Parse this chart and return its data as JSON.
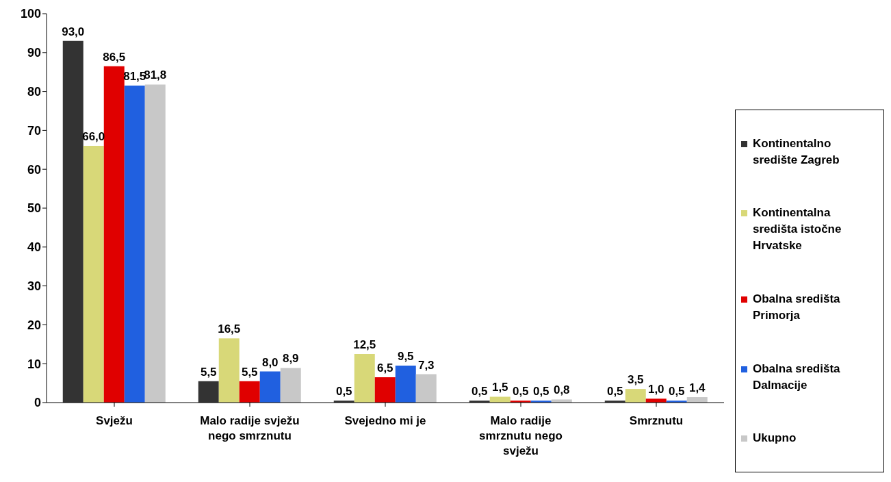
{
  "chart_data": {
    "type": "bar",
    "categories": [
      "Svježu",
      "Malo radije svježu nego smrznutu",
      "Svejedno mi je",
      "Malo radije smrznutu nego svježu",
      "Smrznutu"
    ],
    "series": [
      {
        "name": "Kontinentalno središte Zagreb",
        "color": "#333333",
        "values": [
          93.0,
          5.5,
          0.5,
          0.5,
          0.5
        ],
        "value_labels": [
          "93,0",
          "5,5",
          "0,5",
          "0,5",
          "0,5"
        ]
      },
      {
        "name": "Kontinentalna središta istočne Hrvatske",
        "color": "#d8d878",
        "values": [
          66.0,
          16.5,
          12.5,
          1.5,
          3.5
        ],
        "value_labels": [
          "66,0",
          "16,5",
          "12,5",
          "1,5",
          "3,5"
        ]
      },
      {
        "name": "Obalna središta Primorja",
        "color": "#e00000",
        "values": [
          86.5,
          5.5,
          6.5,
          0.5,
          1.0
        ],
        "value_labels": [
          "86,5",
          "5,5",
          "6,5",
          "0,5",
          "1,0"
        ]
      },
      {
        "name": "Obalna središta Dalmacije",
        "color": "#2060e0",
        "values": [
          81.5,
          8.0,
          9.5,
          0.5,
          0.5
        ],
        "value_labels": [
          "81,5",
          "8,0",
          "9,5",
          "0,5",
          "0,5"
        ]
      },
      {
        "name": "Ukupno",
        "color": "#c8c8c8",
        "values": [
          81.8,
          8.9,
          7.3,
          0.8,
          1.4
        ],
        "value_labels": [
          "81,8",
          "8,9",
          "7,3",
          "0,8",
          "1,4"
        ]
      }
    ],
    "ylim": [
      0,
      100
    ],
    "yticks": [
      0,
      10,
      20,
      30,
      40,
      50,
      60,
      70,
      80,
      90,
      100
    ],
    "grid": false,
    "legend": "right"
  }
}
